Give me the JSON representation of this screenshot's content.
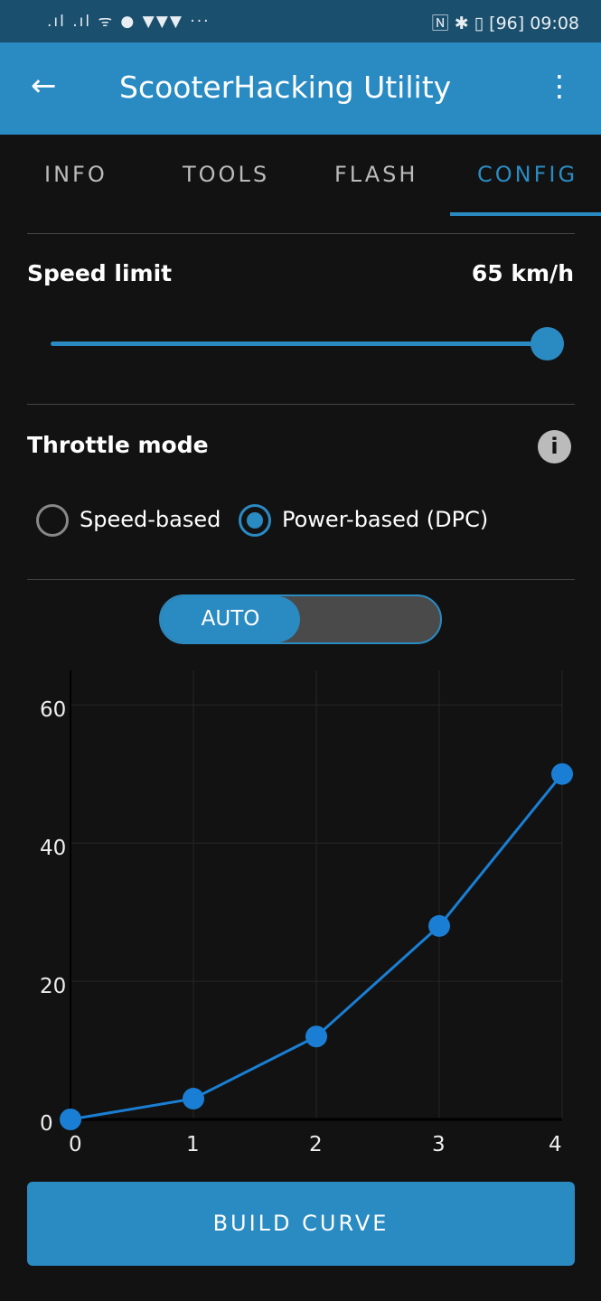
{
  "status_bar": {
    "left_icons": "signal, signal, wifi, firetv, brave x3, more",
    "battery": "96",
    "time": "09:08"
  },
  "app_bar": {
    "title": "ScooterHacking Utility",
    "back_icon": "arrow-left-icon",
    "menu_icon": "more-vert-icon"
  },
  "tabs": [
    {
      "label": "INFO"
    },
    {
      "label": "TOOLS"
    },
    {
      "label": "FLASH"
    },
    {
      "label": "CONFIG",
      "active": true
    }
  ],
  "speed_limit": {
    "label": "Speed limit",
    "value_text": "65 km/h",
    "value": 65,
    "fraction": 1.0
  },
  "throttle": {
    "label": "Throttle mode",
    "options": [
      {
        "label": "Speed-based",
        "selected": false
      },
      {
        "label": "Power-based (DPC)",
        "selected": true
      }
    ]
  },
  "toggle": {
    "label": "AUTO",
    "on": true
  },
  "chart_data": {
    "type": "line",
    "x": [
      0,
      1,
      2,
      3,
      4
    ],
    "y": [
      0,
      3,
      12,
      28,
      50
    ],
    "xticks": [
      "0",
      "1",
      "2",
      "3",
      "4"
    ],
    "yticks": [
      "0",
      "20",
      "40",
      "60"
    ],
    "xlim": [
      0,
      4
    ],
    "ylim": [
      0,
      65
    ],
    "grid": true,
    "color": "#1a7fd4"
  },
  "build_button": "BUILD CURVE",
  "colors": {
    "accent": "#2a8bc3",
    "background": "#121212",
    "status": "#1b4f6e"
  }
}
